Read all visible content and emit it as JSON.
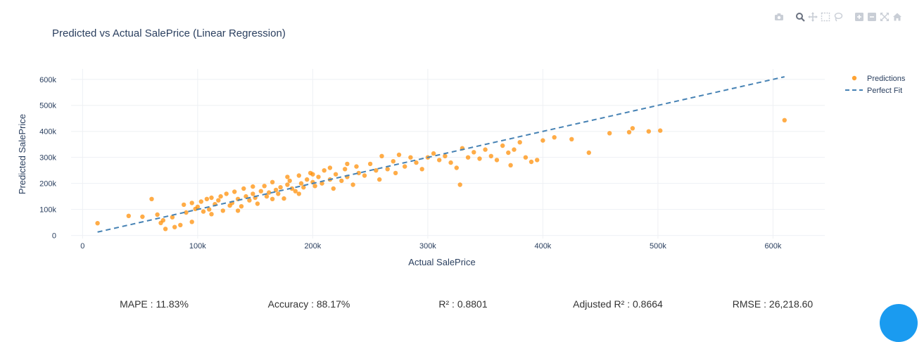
{
  "chart_data": {
    "type": "scatter",
    "title": "Predicted vs Actual SalePrice (Linear Regression)",
    "xlabel": "Actual SalePrice",
    "ylabel": "Predicted SalePrice",
    "xlim": [
      -10000,
      645000
    ],
    "ylim": [
      -12000,
      640000
    ],
    "x_ticks": [
      0,
      100000,
      200000,
      300000,
      400000,
      500000,
      600000
    ],
    "x_tick_labels": [
      "0",
      "100k",
      "200k",
      "300k",
      "400k",
      "500k",
      "600k"
    ],
    "y_ticks": [
      0,
      100000,
      200000,
      300000,
      400000,
      500000,
      600000
    ],
    "y_tick_labels": [
      "0",
      "100k",
      "200k",
      "300k",
      "400k",
      "500k",
      "600k"
    ],
    "grid": true,
    "legend_position": "top-right",
    "series": [
      {
        "name": "Predictions",
        "mode": "markers",
        "color": "#ff8c00",
        "points": [
          [
            13000,
            47000
          ],
          [
            40000,
            75000
          ],
          [
            52000,
            72000
          ],
          [
            60000,
            140000
          ],
          [
            65000,
            80000
          ],
          [
            68000,
            48000
          ],
          [
            70000,
            58000
          ],
          [
            72000,
            25000
          ],
          [
            78000,
            70000
          ],
          [
            80000,
            32000
          ],
          [
            85000,
            40000
          ],
          [
            88000,
            118000
          ],
          [
            90000,
            88000
          ],
          [
            95000,
            52000
          ],
          [
            98000,
            102000
          ],
          [
            100000,
            110000
          ],
          [
            103000,
            130000
          ],
          [
            105000,
            92000
          ],
          [
            108000,
            140000
          ],
          [
            110000,
            100000
          ],
          [
            112000,
            82000
          ],
          [
            115000,
            120000
          ],
          [
            118000,
            135000
          ],
          [
            120000,
            150000
          ],
          [
            122000,
            95000
          ],
          [
            125000,
            160000
          ],
          [
            128000,
            115000
          ],
          [
            130000,
            125000
          ],
          [
            132000,
            168000
          ],
          [
            135000,
            140000
          ],
          [
            138000,
            112000
          ],
          [
            140000,
            180000
          ],
          [
            142000,
            150000
          ],
          [
            145000,
            135000
          ],
          [
            148000,
            160000
          ],
          [
            150000,
            145000
          ],
          [
            152000,
            122000
          ],
          [
            155000,
            170000
          ],
          [
            158000,
            190000
          ],
          [
            160000,
            150000
          ],
          [
            162000,
            165000
          ],
          [
            165000,
            205000
          ],
          [
            168000,
            175000
          ],
          [
            170000,
            160000
          ],
          [
            172000,
            185000
          ],
          [
            175000,
            142000
          ],
          [
            178000,
            195000
          ],
          [
            180000,
            210000
          ],
          [
            182000,
            180000
          ],
          [
            185000,
            170000
          ],
          [
            188000,
            230000
          ],
          [
            190000,
            200000
          ],
          [
            192000,
            185000
          ],
          [
            195000,
            215000
          ],
          [
            198000,
            240000
          ],
          [
            200000,
            205000
          ],
          [
            202000,
            190000
          ],
          [
            205000,
            225000
          ],
          [
            208000,
            200000
          ],
          [
            210000,
            250000
          ],
          [
            215000,
            215000
          ],
          [
            218000,
            180000
          ],
          [
            220000,
            235000
          ],
          [
            225000,
            210000
          ],
          [
            228000,
            255000
          ],
          [
            230000,
            225000
          ],
          [
            235000,
            195000
          ],
          [
            238000,
            265000
          ],
          [
            240000,
            240000
          ],
          [
            245000,
            230000
          ],
          [
            250000,
            275000
          ],
          [
            255000,
            250000
          ],
          [
            258000,
            215000
          ],
          [
            260000,
            305000
          ],
          [
            265000,
            255000
          ],
          [
            270000,
            285000
          ],
          [
            272000,
            240000
          ],
          [
            275000,
            310000
          ],
          [
            280000,
            265000
          ],
          [
            285000,
            300000
          ],
          [
            290000,
            280000
          ],
          [
            295000,
            255000
          ],
          [
            300000,
            300000
          ],
          [
            305000,
            315000
          ],
          [
            310000,
            290000
          ],
          [
            315000,
            305000
          ],
          [
            320000,
            280000
          ],
          [
            325000,
            260000
          ],
          [
            328000,
            195000
          ],
          [
            330000,
            335000
          ],
          [
            335000,
            300000
          ],
          [
            340000,
            320000
          ],
          [
            345000,
            295000
          ],
          [
            350000,
            330000
          ],
          [
            355000,
            305000
          ],
          [
            360000,
            290000
          ],
          [
            365000,
            345000
          ],
          [
            370000,
            318000
          ],
          [
            372000,
            270000
          ],
          [
            375000,
            330000
          ],
          [
            380000,
            358000
          ],
          [
            385000,
            300000
          ],
          [
            390000,
            283000
          ],
          [
            395000,
            290000
          ],
          [
            400000,
            365000
          ],
          [
            410000,
            377000
          ],
          [
            425000,
            370000
          ],
          [
            440000,
            318000
          ],
          [
            458000,
            393000
          ],
          [
            475000,
            397000
          ],
          [
            478000,
            412000
          ],
          [
            492000,
            400000
          ],
          [
            502000,
            403000
          ],
          [
            610000,
            443000
          ],
          [
            95000,
            125000
          ],
          [
            112000,
            145000
          ],
          [
            135000,
            95000
          ],
          [
            148000,
            188000
          ],
          [
            165000,
            140000
          ],
          [
            178000,
            225000
          ],
          [
            188000,
            160000
          ],
          [
            200000,
            235000
          ],
          [
            215000,
            260000
          ],
          [
            230000,
            275000
          ]
        ]
      },
      {
        "name": "Perfect Fit",
        "mode": "lines",
        "dash": "dash",
        "color": "#4682b4",
        "x": [
          13000,
          610000
        ],
        "y": [
          13000,
          610000
        ]
      }
    ]
  },
  "metrics": [
    {
      "label": "MAPE",
      "value": "11.83%"
    },
    {
      "label": "Accuracy",
      "value": "88.17%"
    },
    {
      "label": "R²",
      "value": "0.8801"
    },
    {
      "label": "Adjusted R²",
      "value": "0.8664"
    },
    {
      "label": "RMSE",
      "value": "26,218.60"
    }
  ],
  "modebar_icons": [
    "camera-icon",
    "zoom-icon",
    "pan-icon",
    "box-select-icon",
    "lasso-icon",
    "zoom-in-icon",
    "zoom-out-icon",
    "autoscale-icon",
    "reset-axes-icon"
  ]
}
